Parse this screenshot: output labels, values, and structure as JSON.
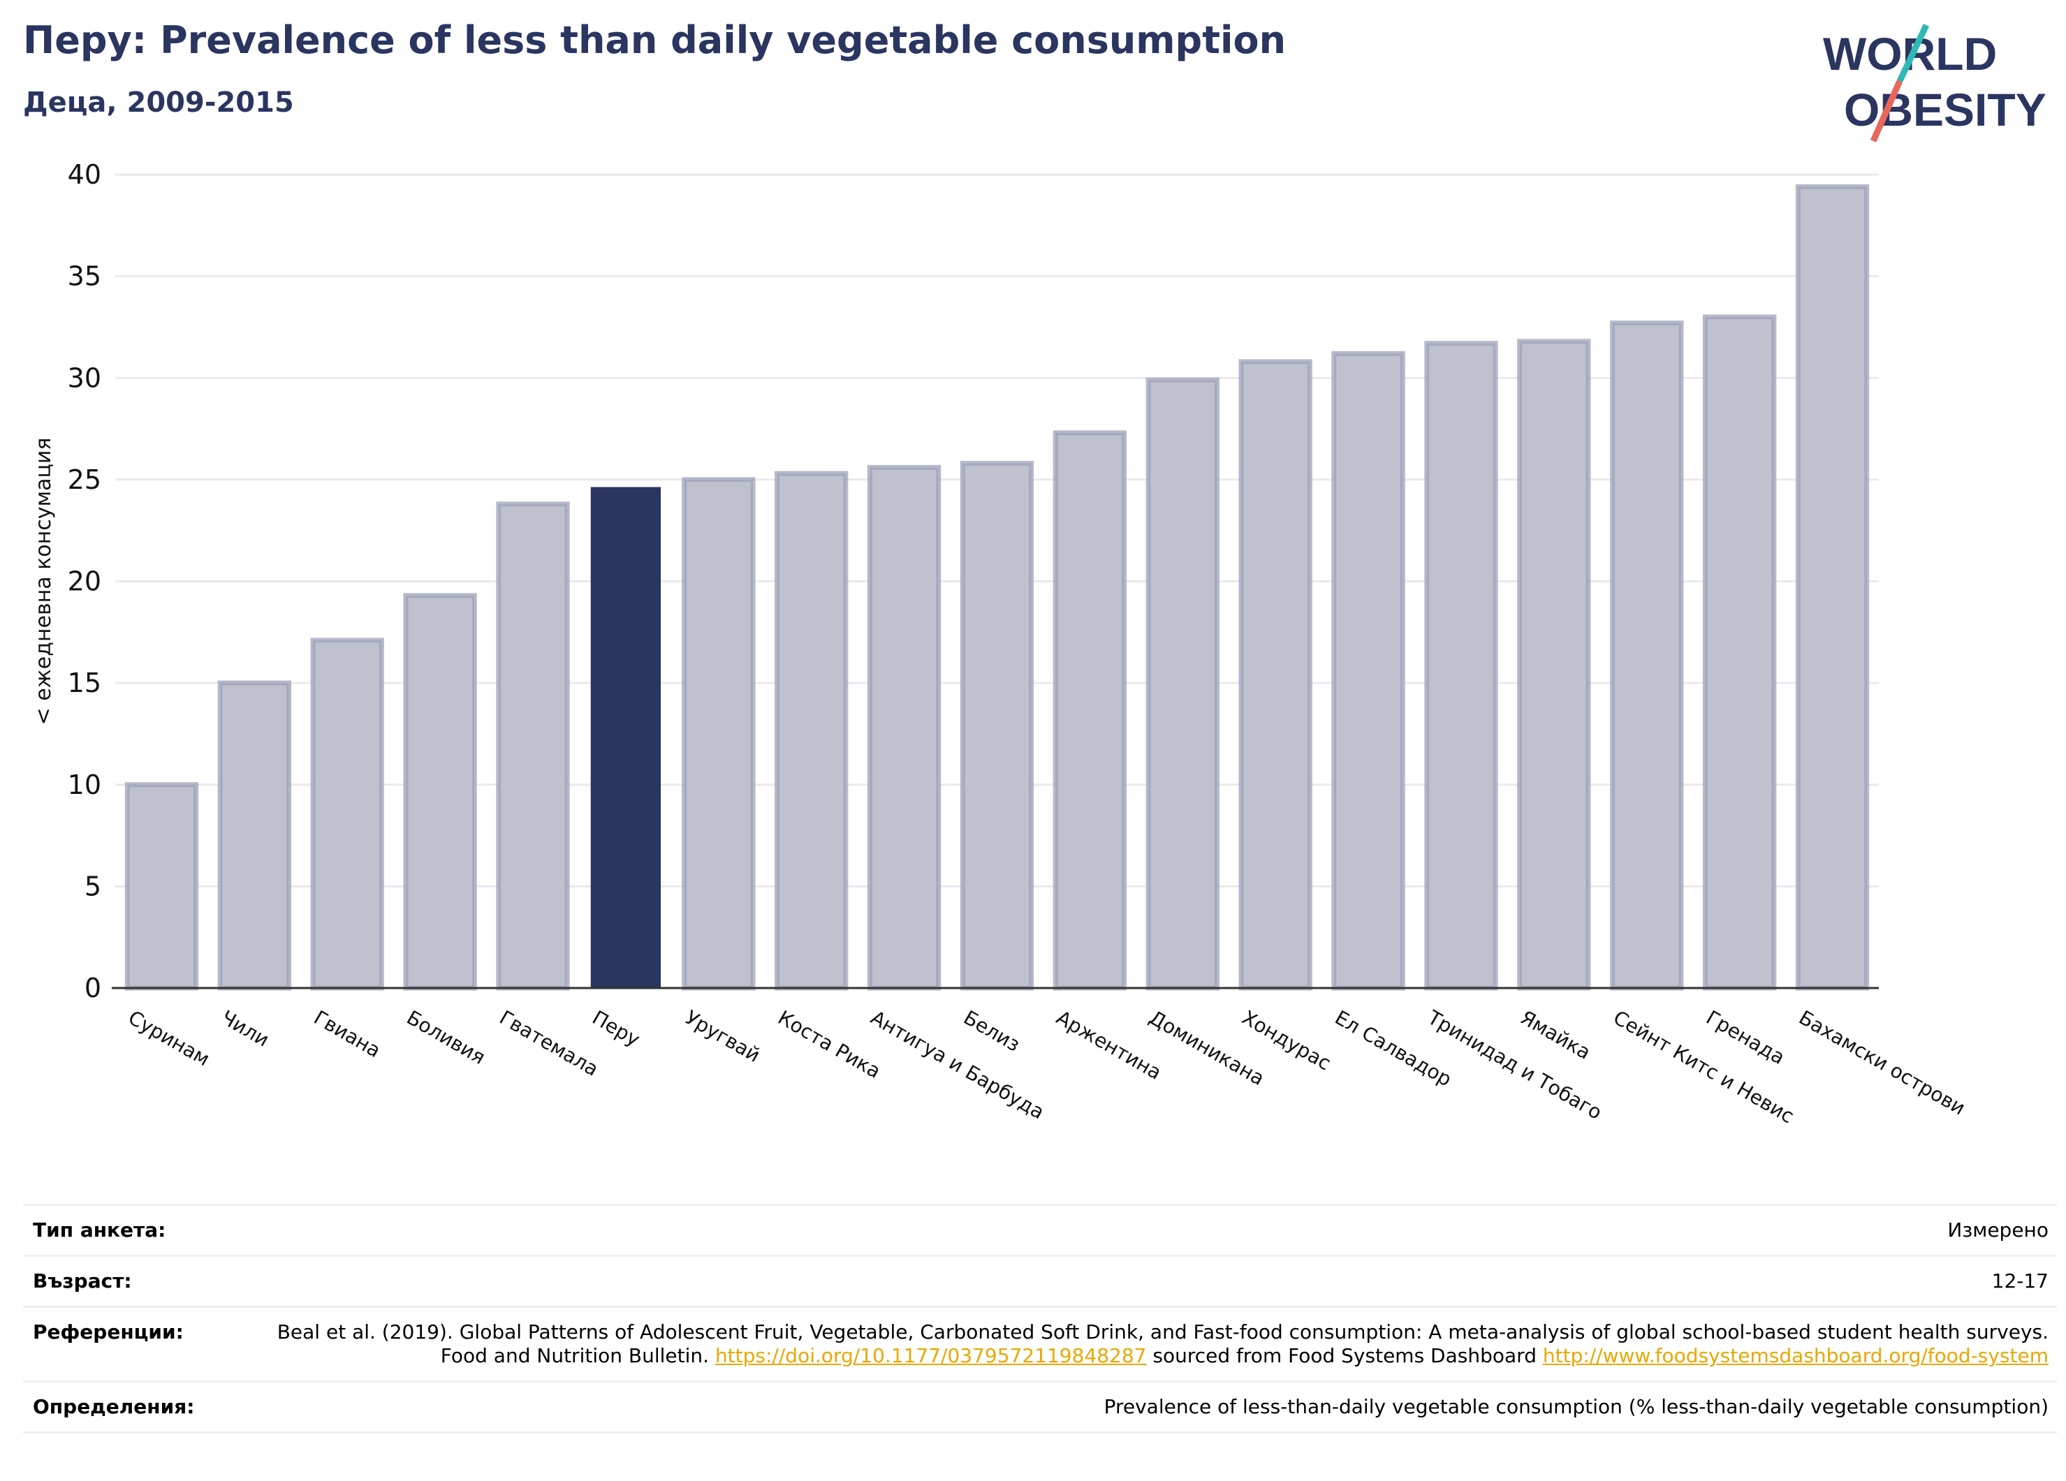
{
  "header": {
    "title": "Перу: Prevalence of less than daily vegetable consumption",
    "subtitle": "Деца, 2009-2015"
  },
  "logo": {
    "line1": "WORLD",
    "line2": "OBESITY",
    "colors": {
      "text": "#2a3560",
      "slash_top": "#2fb9b5",
      "slash_bottom": "#e8675b"
    }
  },
  "colors": {
    "bar_fill": "#bfc2ce",
    "bar_edge": "#9ca1b8",
    "highlight": "#2a3560",
    "grid": "#e9eaef",
    "axis": "#333333"
  },
  "chart_data": {
    "type": "bar",
    "ylabel": "< ежедневна консумация",
    "ylim": [
      0,
      40
    ],
    "yticks": [
      0,
      5,
      10,
      15,
      20,
      25,
      30,
      35,
      40
    ],
    "grid": true,
    "highlight_category": "Перу",
    "categories": [
      "Суринам",
      "Чили",
      "Гвиана",
      "Боливия",
      "Гватемала",
      "Перу",
      "Уругвай",
      "Коста Рика",
      "Антигуа и Барбуда",
      "Белиз",
      "Аржентина",
      "Доминикана",
      "Хондурас",
      "Ел Салвадор",
      "Тринидад и Тобаго",
      "Ямайка",
      "Сейнт Китс и Невис",
      "Гренада",
      "Бахамски острови"
    ],
    "values": [
      10.0,
      15.0,
      17.1,
      19.3,
      23.8,
      24.6,
      25.0,
      25.3,
      25.6,
      25.8,
      27.3,
      29.9,
      30.8,
      31.2,
      31.7,
      31.8,
      32.7,
      33.0,
      39.4
    ]
  },
  "meta": [
    {
      "label": "Тип анкета:",
      "value": [
        {
          "text": "Измерено"
        }
      ]
    },
    {
      "label": "Възраст:",
      "value": [
        {
          "text": "12-17"
        }
      ]
    },
    {
      "label": "Референции:",
      "value": [
        {
          "text": "Beal et al. (2019). Global Patterns of Adolescent Fruit, Vegetable, Carbonated Soft Drink, and Fast-food consumption: A meta-analysis of global school-based student health surveys. Food and Nutrition Bulletin. "
        },
        {
          "text": "https://doi.org/10.1177/0379572119848287",
          "link": true
        },
        {
          "text": " sourced from Food Systems Dashboard "
        },
        {
          "text": "http://www.foodsystemsdashboard.org/food-system",
          "link": true
        }
      ]
    },
    {
      "label": "Определения:",
      "value": [
        {
          "text": "Prevalence of less-than-daily vegetable consumption (% less-than-daily vegetable consumption)"
        }
      ]
    }
  ]
}
